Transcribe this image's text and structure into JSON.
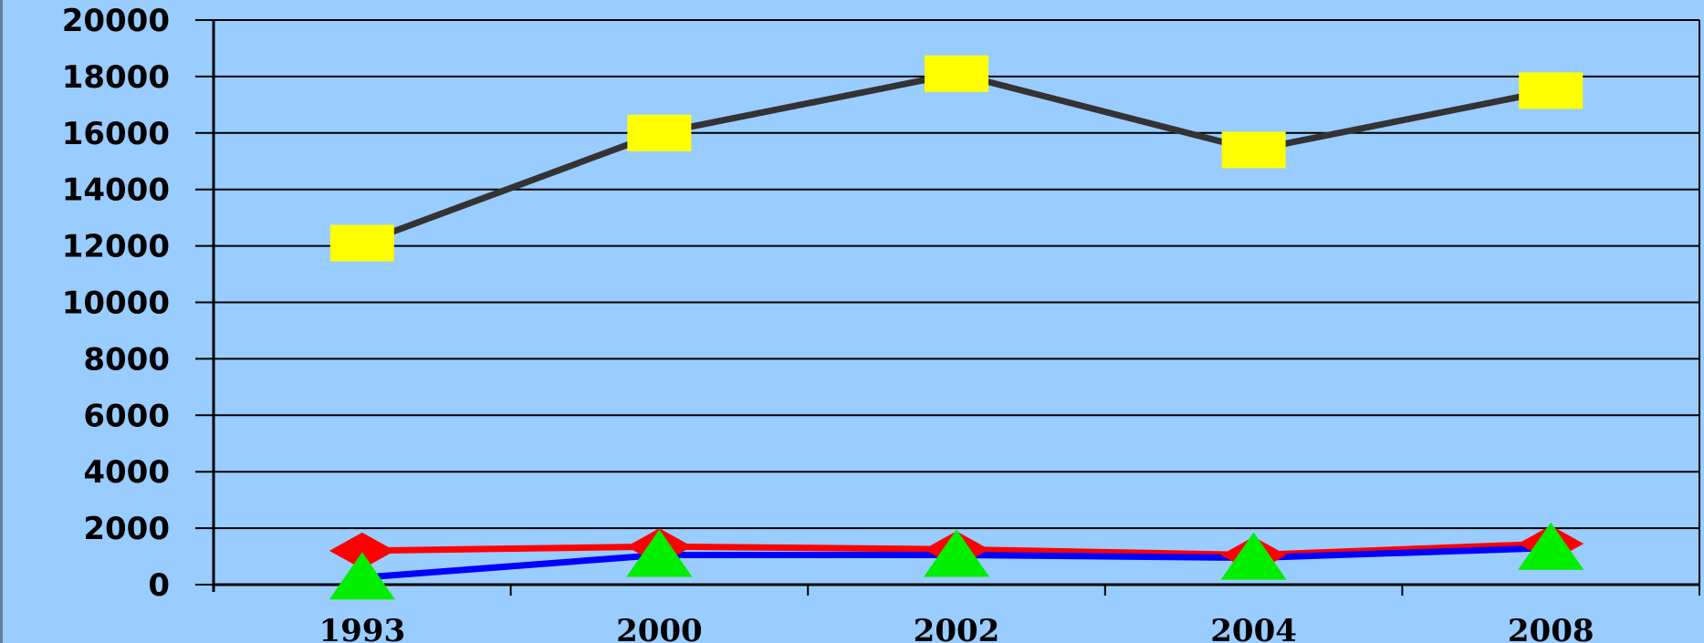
{
  "chart_data": {
    "type": "line",
    "title": "",
    "xlabel": "",
    "ylabel": "",
    "categories": [
      "1993",
      "2000",
      "2002",
      "2004",
      "2008"
    ],
    "ylim": [
      0,
      20000
    ],
    "yticks": [
      "0",
      "2000",
      "4000",
      "6000",
      "8000",
      "10000",
      "12000",
      "14000",
      "16000",
      "18000",
      "20000"
    ],
    "grid": true,
    "legend": "none",
    "background": "#99ccff",
    "series": [
      {
        "values": [
          12100,
          16000,
          18100,
          15400,
          17500
        ],
        "line_color": "#333333",
        "marker": "square",
        "marker_color": "#ffff00"
      },
      {
        "values": [
          1200,
          1350,
          1250,
          1050,
          1450
        ],
        "line_color": "#ff0000",
        "marker": "diamond",
        "marker_color": "#ff0000"
      },
      {
        "values": [
          250,
          1050,
          1050,
          950,
          1300
        ],
        "line_color": "#0000ff",
        "marker": "triangle",
        "marker_color": "#00ee00"
      }
    ]
  }
}
